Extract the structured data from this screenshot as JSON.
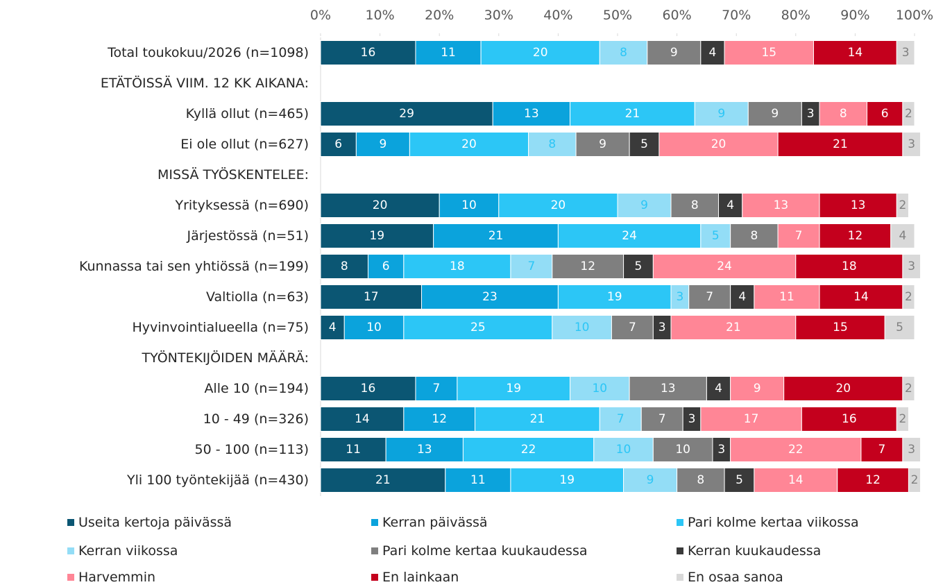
{
  "chart_data": {
    "type": "stacked_barh",
    "categories": [
      "Total toukokuu/2026 (n=1098)",
      "ETÄTÖISSÄ VIIM. 12 KK AIKANA:",
      "Kyllä ollut (n=465)",
      "Ei ole ollut (n=627)",
      "MISSÄ TYÖSKENTELEE:",
      "Yrityksessä (n=690)",
      "Järjestössä (n=51)",
      "Kunnassa tai sen yhtiössä (n=199)",
      "Valtiolla (n=63)",
      "Hyvinvointialueella (n=75)",
      "TYÖNTEKIJÖIDEN MÄÄRÄ:",
      "Alle 10 (n=194)",
      "10 - 49 (n=326)",
      "50 - 100 (n=113)",
      "Yli 100 työntekijää (n=430)"
    ],
    "series": [
      {
        "name": "Useita kertoja päivässä",
        "color": "#0b5673",
        "label_color": "#ffffff",
        "values": [
          16,
          null,
          29,
          6,
          null,
          20,
          19,
          8,
          17,
          4,
          null,
          16,
          14,
          11,
          21
        ]
      },
      {
        "name": "Kerran päivässä",
        "color": "#0ba3dc",
        "label_color": "#ffffff",
        "values": [
          11,
          null,
          13,
          9,
          null,
          10,
          21,
          6,
          23,
          10,
          null,
          7,
          12,
          13,
          11
        ]
      },
      {
        "name": "Pari kolme kertaa viikossa",
        "color": "#2cc6f6",
        "label_color": "#ffffff",
        "values": [
          20,
          null,
          21,
          20,
          null,
          20,
          24,
          18,
          19,
          25,
          null,
          19,
          21,
          22,
          19
        ]
      },
      {
        "name": "Kerran viikossa",
        "color": "#93ddf6",
        "label_color": "#2cc6f6",
        "values": [
          8,
          null,
          9,
          8,
          null,
          9,
          5,
          7,
          3,
          10,
          null,
          10,
          7,
          10,
          9
        ]
      },
      {
        "name": "Pari kolme kertaa kuukaudessa",
        "color": "#7f7f7f",
        "label_color": "#ffffff",
        "values": [
          9,
          null,
          9,
          9,
          null,
          8,
          8,
          12,
          7,
          7,
          null,
          13,
          7,
          10,
          8
        ]
      },
      {
        "name": "Kerran kuukaudessa",
        "color": "#3a3a3a",
        "label_color": "#ffffff",
        "values": [
          4,
          null,
          3,
          5,
          null,
          4,
          null,
          5,
          4,
          3,
          null,
          4,
          3,
          3,
          5
        ]
      },
      {
        "name": "Harvemmin",
        "color": "#ff8696",
        "label_color": "#ffffff",
        "values": [
          15,
          null,
          8,
          20,
          null,
          13,
          7,
          24,
          11,
          21,
          null,
          9,
          17,
          22,
          14
        ]
      },
      {
        "name": "En lainkaan",
        "color": "#c4001d",
        "label_color": "#ffffff",
        "values": [
          14,
          null,
          6,
          21,
          null,
          13,
          12,
          18,
          14,
          15,
          null,
          20,
          16,
          7,
          12
        ]
      },
      {
        "name": "En osaa sanoa",
        "color": "#d9d9d9",
        "label_color": "#808080",
        "values": [
          3,
          null,
          2,
          3,
          null,
          2,
          4,
          3,
          2,
          5,
          null,
          2,
          2,
          3,
          2
        ]
      }
    ],
    "xlim": [
      0,
      100
    ],
    "xticks": [
      {
        "value": 0,
        "label": "0%"
      },
      {
        "value": 10,
        "label": "10%"
      },
      {
        "value": 20,
        "label": "20%"
      },
      {
        "value": 30,
        "label": "30%"
      },
      {
        "value": 40,
        "label": "40%"
      },
      {
        "value": 50,
        "label": "50%"
      },
      {
        "value": 60,
        "label": "60%"
      },
      {
        "value": 70,
        "label": "70%"
      },
      {
        "value": 80,
        "label": "80%"
      },
      {
        "value": 90,
        "label": "90%"
      },
      {
        "value": 100,
        "label": "100%"
      }
    ],
    "legend": "bottom"
  }
}
